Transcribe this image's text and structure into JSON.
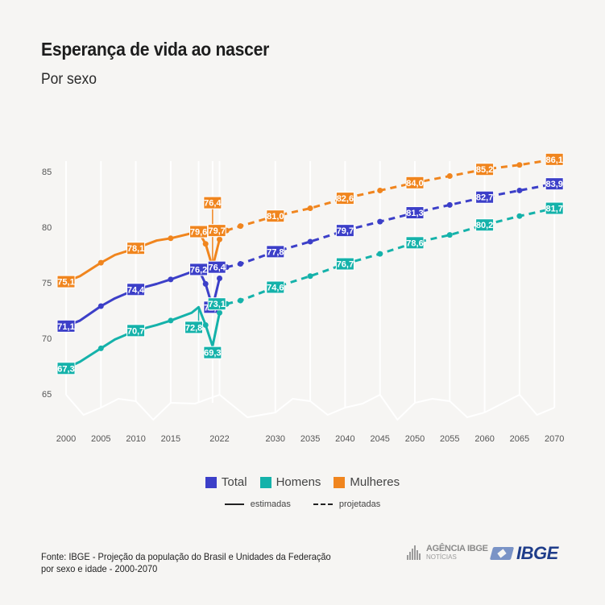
{
  "header": {
    "title": "Esperança de vida ao nascer",
    "subtitle": "Por sexo"
  },
  "legend": {
    "series": [
      {
        "name": "Total",
        "color": "#3c3fc8"
      },
      {
        "name": "Homens",
        "color": "#15b2aa"
      },
      {
        "name": "Mulheres",
        "color": "#f0851e"
      }
    ],
    "styles": [
      {
        "name": "estimadas",
        "style": "solid"
      },
      {
        "name": "projetadas",
        "style": "dashed"
      }
    ]
  },
  "footer": {
    "source_line1": "Fonte: IBGE - Projeção da população do Brasil e Unidades da Federação",
    "source_line2": "por sexo e idade - 2000-2070",
    "logo_agencia_line1": "AGÊNCIA IBGE",
    "logo_agencia_line2": "NOTÍCIAS",
    "logo_ibge": "IBGE"
  },
  "chart_data": {
    "type": "line",
    "title": "Esperança de vida ao nascer",
    "subtitle": "Por sexo",
    "xlabel": "",
    "ylabel": "",
    "ylim": [
      65,
      85
    ],
    "yticks": [
      65,
      70,
      75,
      80,
      85
    ],
    "xticks": [
      "2000",
      "2005",
      "2010",
      "2015",
      "2022",
      "2030",
      "2035",
      "2040",
      "2045",
      "2050",
      "2055",
      "2060",
      "2065",
      "2070"
    ],
    "xtick_values": [
      2000,
      2005,
      2010,
      2015,
      2022,
      2030,
      2035,
      2040,
      2045,
      2050,
      2055,
      2060,
      2065,
      2070
    ],
    "grid": "vertical",
    "legend_position": "bottom",
    "series": [
      {
        "name": "Mulheres",
        "color": "#f0851e",
        "estimated": [
          [
            2000,
            75.1
          ],
          [
            2002,
            75.6
          ],
          [
            2005,
            76.8
          ],
          [
            2007,
            77.5
          ],
          [
            2010,
            78.1
          ],
          [
            2013,
            78.8
          ],
          [
            2015,
            79.0
          ],
          [
            2019,
            79.6
          ],
          [
            2020,
            78.5
          ],
          [
            2021,
            76.4
          ],
          [
            2022,
            78.9
          ]
        ],
        "projected": [
          [
            2023,
            79.7
          ],
          [
            2025,
            80.1
          ],
          [
            2030,
            81.0
          ],
          [
            2035,
            81.7
          ],
          [
            2040,
            82.6
          ],
          [
            2045,
            83.3
          ],
          [
            2050,
            84.0
          ],
          [
            2055,
            84.6
          ],
          [
            2060,
            85.2
          ],
          [
            2065,
            85.6
          ],
          [
            2070,
            86.1
          ]
        ],
        "labels": [
          [
            2000,
            "75,1"
          ],
          [
            2010,
            "78,1"
          ],
          [
            2019,
            "79,6"
          ],
          [
            2021,
            "76,4"
          ],
          [
            2023,
            "79,7"
          ],
          [
            2030,
            "81,0"
          ],
          [
            2040,
            "82,6"
          ],
          [
            2050,
            "84,0"
          ],
          [
            2060,
            "85,2"
          ],
          [
            2070,
            "86,1"
          ]
        ]
      },
      {
        "name": "Total",
        "color": "#3c3fc8",
        "estimated": [
          [
            2000,
            71.1
          ],
          [
            2002,
            71.6
          ],
          [
            2005,
            72.9
          ],
          [
            2007,
            73.6
          ],
          [
            2010,
            74.4
          ],
          [
            2013,
            74.9
          ],
          [
            2015,
            75.3
          ],
          [
            2019,
            76.2
          ],
          [
            2020,
            74.9
          ],
          [
            2021,
            72.8
          ],
          [
            2022,
            75.4
          ]
        ],
        "projected": [
          [
            2023,
            76.4
          ],
          [
            2025,
            76.7
          ],
          [
            2030,
            77.8
          ],
          [
            2035,
            78.7
          ],
          [
            2040,
            79.7
          ],
          [
            2045,
            80.5
          ],
          [
            2050,
            81.3
          ],
          [
            2055,
            82.0
          ],
          [
            2060,
            82.7
          ],
          [
            2065,
            83.3
          ],
          [
            2070,
            83.9
          ]
        ],
        "labels": [
          [
            2000,
            "71,1"
          ],
          [
            2010,
            "74,4"
          ],
          [
            2019,
            "76,2"
          ],
          [
            2021,
            "72,8"
          ],
          [
            2023,
            "76,4"
          ],
          [
            2030,
            "77,8"
          ],
          [
            2040,
            "79,7"
          ],
          [
            2050,
            "81,3"
          ],
          [
            2060,
            "82,7"
          ],
          [
            2070,
            "83,9"
          ]
        ]
      },
      {
        "name": "Homens",
        "color": "#15b2aa",
        "estimated": [
          [
            2000,
            67.3
          ],
          [
            2002,
            67.9
          ],
          [
            2005,
            69.1
          ],
          [
            2007,
            69.9
          ],
          [
            2010,
            70.7
          ],
          [
            2013,
            71.2
          ],
          [
            2015,
            71.6
          ],
          [
            2018,
            72.3
          ],
          [
            2019,
            72.8
          ],
          [
            2020,
            71.2
          ],
          [
            2021,
            69.3
          ],
          [
            2022,
            72.3
          ]
        ],
        "projected": [
          [
            2023,
            73.1
          ],
          [
            2025,
            73.4
          ],
          [
            2030,
            74.6
          ],
          [
            2035,
            75.6
          ],
          [
            2040,
            76.7
          ],
          [
            2045,
            77.6
          ],
          [
            2050,
            78.6
          ],
          [
            2055,
            79.3
          ],
          [
            2060,
            80.2
          ],
          [
            2065,
            81.0
          ],
          [
            2070,
            81.7
          ]
        ],
        "labels": [
          [
            2000,
            "67,3"
          ],
          [
            2010,
            "70,7"
          ],
          [
            2019,
            "72,8"
          ],
          [
            2021,
            "69,3"
          ],
          [
            2023,
            "73,1"
          ],
          [
            2030,
            "74,6"
          ],
          [
            2040,
            "76,7"
          ],
          [
            2050,
            "78,6"
          ],
          [
            2060,
            "80,2"
          ],
          [
            2070,
            "81,7"
          ]
        ]
      }
    ]
  }
}
